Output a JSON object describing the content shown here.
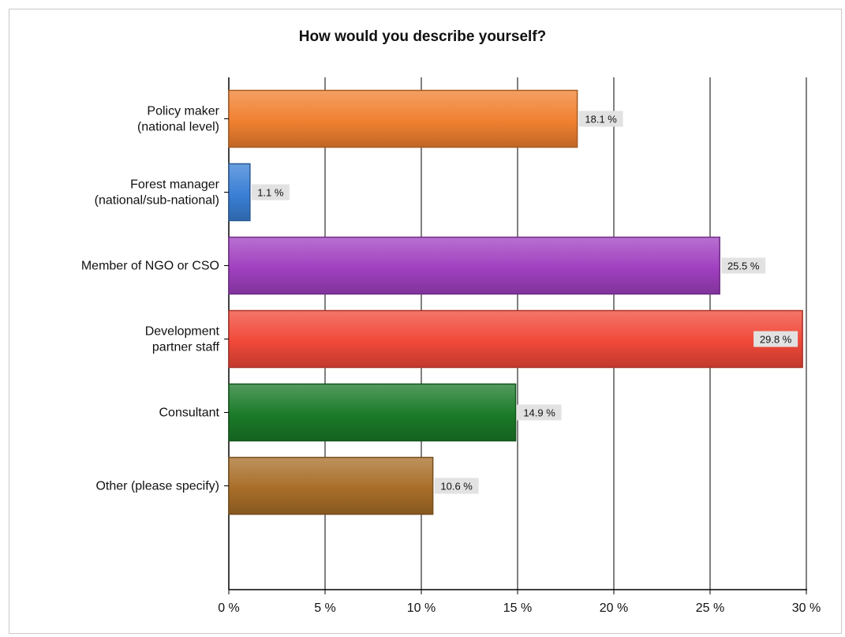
{
  "chart_data": {
    "type": "bar",
    "orientation": "horizontal",
    "title": "How would you describe yourself?",
    "categories": [
      "Policy maker\n(national level)",
      "Forest manager\n(national/sub-national)",
      "Member of NGO or CSO",
      "Development\npartner staff",
      "Consultant",
      "Other (please specify)"
    ],
    "values": [
      18.1,
      1.1,
      25.5,
      29.8,
      14.9,
      10.6
    ],
    "value_labels": [
      "18.1 %",
      "1.1 %",
      "25.5 %",
      "29.8 %",
      "14.9 %",
      "10.6 %"
    ],
    "bar_colors": [
      "#f08030",
      "#3a7fd5",
      "#a040c0",
      "#f04838",
      "#1a7a28",
      "#a86e28"
    ],
    "xlim": [
      0,
      30
    ],
    "x_ticks": [
      0,
      5,
      10,
      15,
      20,
      25,
      30
    ],
    "x_tick_labels": [
      "0 %",
      "5 %",
      "10 %",
      "15 %",
      "20 %",
      "25 %",
      "30 %"
    ],
    "xlabel": "",
    "ylabel": "",
    "grid": "vertical",
    "legend": "none"
  }
}
